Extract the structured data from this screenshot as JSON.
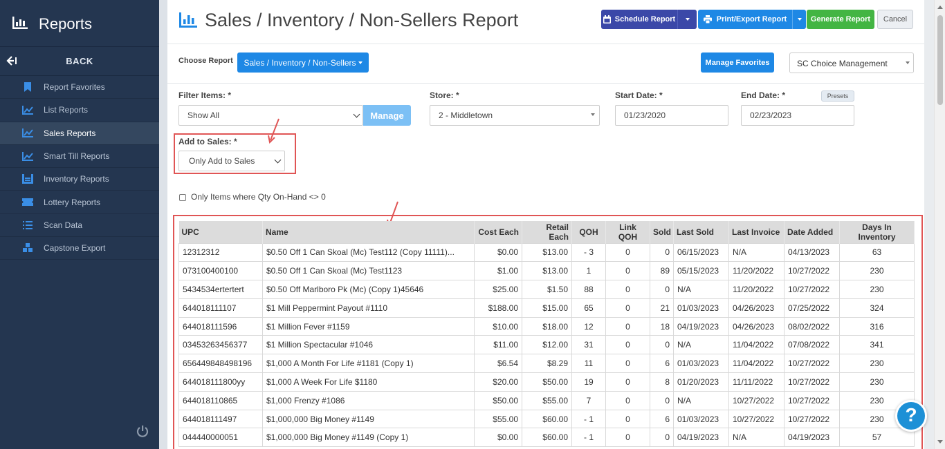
{
  "sidebar": {
    "title": "Reports",
    "back_label": "BACK",
    "items": [
      {
        "label": "Report Favorites",
        "icon": "bookmark-icon",
        "active": false
      },
      {
        "label": "List Reports",
        "icon": "line-chart-icon",
        "active": false
      },
      {
        "label": "Sales Reports",
        "icon": "line-chart-icon",
        "active": true
      },
      {
        "label": "Smart Till Reports",
        "icon": "line-chart-icon",
        "active": false
      },
      {
        "label": "Inventory Reports",
        "icon": "warehouse-icon",
        "active": false
      },
      {
        "label": "Lottery Reports",
        "icon": "ticket-icon",
        "active": false
      },
      {
        "label": "Scan Data",
        "icon": "list-icon",
        "active": false
      },
      {
        "label": "Capstone Export",
        "icon": "cubes-icon",
        "active": false
      }
    ]
  },
  "header": {
    "title": "Sales / Inventory / Non-Sellers Report",
    "schedule_label": "Schedule Report",
    "print_label": "Print/Export Report",
    "generate_label": "Generate Report",
    "cancel_label": "Cancel"
  },
  "choose": {
    "label": "Choose Report",
    "selected": "Sales / Inventory / Non-Sellers",
    "manage_favorites": "Manage Favorites",
    "company": "SC Choice Management"
  },
  "filters": {
    "filter_items_label": "Filter Items: *",
    "filter_items_value": "Show All",
    "manage_label": "Manage",
    "store_label": "Store: *",
    "store_value": "2 - Middletown",
    "start_label": "Start Date: *",
    "start_value": "01/23/2020",
    "end_label": "End Date: *",
    "end_value": "02/23/2023",
    "presets_label": "Presets",
    "add_to_sales_label": "Add to Sales: *",
    "add_to_sales_value": "Only Add to Sales",
    "only_qoh_label": "Only Items where Qty On-Hand <> 0"
  },
  "table": {
    "headers": [
      "UPC",
      "Name",
      "Cost Each",
      "Retail Each",
      "QOH",
      "Link QOH",
      "Sold",
      "Last Sold",
      "Last Invoice",
      "Date Added",
      "Days In Inventory"
    ],
    "rows": [
      [
        "12312312",
        "$0.50 Off 1 Can Skoal (Mc) Test112 (Copy 11111)...",
        "$0.00",
        "$13.00",
        "- 3",
        "0",
        "0",
        "06/15/2023",
        "N/A",
        "04/13/2023",
        "63"
      ],
      [
        "073100400100",
        "$0.50 Off 1 Can Skoal (Mc) Test1123",
        "$1.00",
        "$13.00",
        "1",
        "0",
        "89",
        "05/15/2023",
        "11/20/2022",
        "10/27/2022",
        "230"
      ],
      [
        "5434534ertertert",
        "$0.50 Off Marlboro Pk (Mc) (Copy 1)45646",
        "$25.00",
        "$1.50",
        "88",
        "0",
        "0",
        "N/A",
        "11/20/2022",
        "10/27/2022",
        "230"
      ],
      [
        "644018111107",
        "$1 Mill Peppermint Payout #1110",
        "$188.00",
        "$15.00",
        "65",
        "0",
        "21",
        "01/03/2023",
        "04/26/2023",
        "07/25/2022",
        "324"
      ],
      [
        "644018111596",
        "$1 Million Fever #1159",
        "$10.00",
        "$18.00",
        "12",
        "0",
        "18",
        "04/19/2023",
        "04/26/2023",
        "08/02/2022",
        "316"
      ],
      [
        "03453263456377",
        "$1 Million Spectacular #1046",
        "$11.00",
        "$12.00",
        "31",
        "0",
        "0",
        "N/A",
        "11/04/2022",
        "07/08/2022",
        "341"
      ],
      [
        "656449848498196",
        "$1,000 A Month For Life #1181 (Copy 1)",
        "$6.54",
        "$8.29",
        "11",
        "0",
        "6",
        "01/03/2023",
        "11/04/2022",
        "10/27/2022",
        "230"
      ],
      [
        "644018111800yy",
        "$1,000 A Week For Life $1180",
        "$20.00",
        "$50.00",
        "19",
        "0",
        "8",
        "01/20/2023",
        "11/11/2022",
        "10/27/2022",
        "230"
      ],
      [
        "644018110865",
        "$1,000 Frenzy #1086",
        "$50.00",
        "$55.00",
        "7",
        "0",
        "0",
        "N/A",
        "10/27/2022",
        "10/27/2022",
        "230"
      ],
      [
        "644018111497",
        "$1,000,000 Big Money #1149",
        "$55.00",
        "$60.00",
        "- 1",
        "0",
        "6",
        "01/03/2023",
        "10/27/2022",
        "10/27/2022",
        "230"
      ],
      [
        "044440000051",
        "$1,000,000 Big Money #1149 (Copy 1)",
        "$0.00",
        "$60.00",
        "- 1",
        "0",
        "0",
        "04/19/2023",
        "N/A",
        "04/19/2023",
        "57"
      ]
    ]
  },
  "help_label": "?",
  "colors": {
    "sidebar": "#243650",
    "primary": "#1e88e5",
    "schedule": "#3b48a8",
    "generate": "#43b543",
    "annotation": "#e05555"
  }
}
